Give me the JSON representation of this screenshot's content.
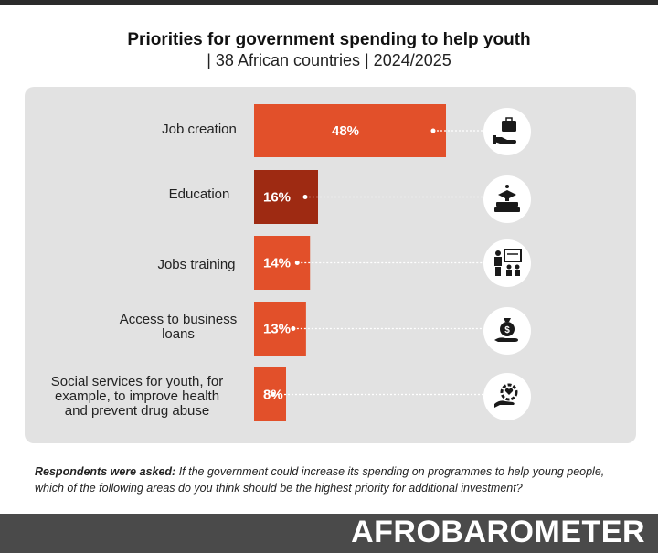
{
  "header": {
    "title": "Priorities for government spending to help youth",
    "subtitle": "| 38 African countries | 2024/2025"
  },
  "colors": {
    "bar": "#e2502a",
    "bar_highlight": "#9e2a12",
    "panel": "#e2e2e2",
    "footer": "#4a4a4a"
  },
  "chart_data": {
    "type": "bar",
    "orientation": "horizontal",
    "title": "Priorities for government spending to help youth",
    "subtitle": "| 38 African countries | 2024/2025",
    "categories": [
      "Job creation",
      "Education",
      "Jobs training",
      "Access to business loans",
      "Social services for youth, for example, to improve health and prevent drug abuse"
    ],
    "values": [
      48,
      16,
      14,
      13,
      8
    ],
    "value_labels": [
      "48%",
      "16%",
      "14%",
      "13%",
      "8%"
    ],
    "units": "%",
    "highlighted_index": 1,
    "icons": [
      "briefcase-hand-icon",
      "graduation-books-icon",
      "training-presentation-icon",
      "money-bag-hand-icon",
      "gear-heart-hand-icon"
    ]
  },
  "labels": {
    "job_creation": "Job creation",
    "education": "Education",
    "jobs_training": "Jobs training",
    "business_loans_1": "Access to business",
    "business_loans_2": "loans",
    "social_1": "Social services for youth, for",
    "social_2": "example, to improve health",
    "social_3": "and prevent drug abuse"
  },
  "note": {
    "lead": "Respondents were asked:",
    "text": " If the government could increase its spending on programmes to help young people, which of the following areas do you think should be the highest priority for additional investment?"
  },
  "footer": {
    "logo": "AFROBAROMETER"
  }
}
